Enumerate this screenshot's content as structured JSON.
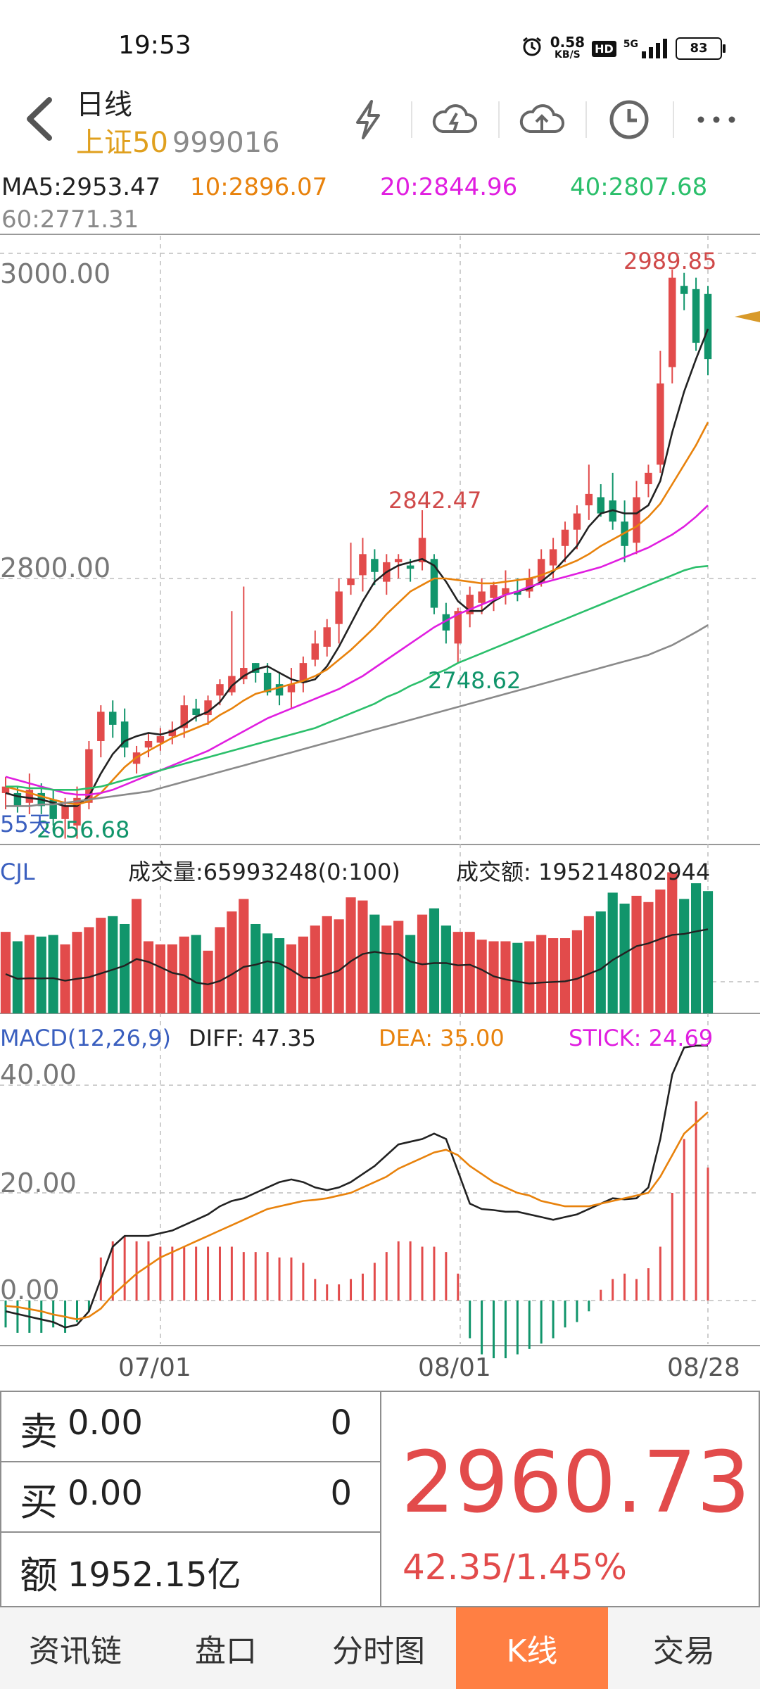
{
  "status_bar": {
    "time": "19:53",
    "net_speed": "0.58",
    "net_unit": "KB/S",
    "hd": "HD",
    "signal": "5G",
    "battery": "83"
  },
  "header": {
    "period": "日线",
    "index_name": "上证50",
    "index_code": "999016"
  },
  "ma_legend": {
    "ma5": "MA5:2953.47",
    "ma10": "10:2896.07",
    "ma20": "20:2844.96",
    "ma40": "40:2807.68",
    "ma60": "60:2771.31"
  },
  "price_chart": {
    "y_tick_top": "3000.00",
    "y_tick_mid": "2800.00",
    "high_label": "2989.85",
    "mid_high_label": "2842.47",
    "mid_low_label": "2748.62",
    "low_label": "2656.68",
    "period_label": "55天"
  },
  "volume_panel": {
    "title": "CJL",
    "volume": "成交量:65993248(0:100)",
    "amount": "成交额: 195214802944"
  },
  "macd_panel": {
    "title": "MACD(12,26,9)",
    "diff": "DIFF: 47.35",
    "dea": "DEA: 35.00",
    "stick": "STICK: 24.69",
    "y_tick_40": "40.00",
    "y_tick_20": "20.00",
    "y_tick_0": "0.00"
  },
  "dates": {
    "d1": "07/01",
    "d2": "08/01",
    "d3": "08/28"
  },
  "quote": {
    "sell_label": "卖",
    "sell_price": "0.00",
    "sell_vol": "0",
    "buy_label": "买",
    "buy_price": "0.00",
    "buy_vol": "0",
    "amount_label": "额",
    "amount_value": "1952.15亿",
    "last_price": "2960.73",
    "change": "42.35/1.45%"
  },
  "tabs": [
    "资讯链",
    "盘口",
    "分时图",
    "K线",
    "交易"
  ],
  "active_tab": "K线",
  "colors": {
    "up": "#e24b4b",
    "down": "#11956b",
    "accent": "#ff7f43",
    "ma10": "#e8820c",
    "ma20": "#e01ee0",
    "ma40": "#2bbf6b",
    "ma60": "#8a8a8a"
  },
  "chart_data": [
    {
      "type": "candlestick",
      "title": "",
      "ylabel": "",
      "y_ticks": [
        2800,
        3000
      ],
      "ylim": [
        2650,
        3010
      ],
      "x_ticks": [
        "07/01",
        "08/01",
        "08/28"
      ],
      "annotations": {
        "high": 2989.85,
        "peak_mid": 2842.47,
        "trough_mid": 2748.62,
        "low": 2656.68
      },
      "ohlc": [
        [
          2668,
          2678,
          2658,
          2672
        ],
        [
          2668,
          2672,
          2656,
          2660
        ],
        [
          2662,
          2680,
          2655,
          2670
        ],
        [
          2668,
          2674,
          2655,
          2660
        ],
        [
          2664,
          2670,
          2648,
          2652
        ],
        [
          2652,
          2665,
          2640,
          2660
        ],
        [
          2648,
          2672,
          2640,
          2665
        ],
        [
          2662,
          2700,
          2658,
          2695
        ],
        [
          2700,
          2722,
          2690,
          2718
        ],
        [
          2718,
          2725,
          2702,
          2710
        ],
        [
          2712,
          2720,
          2690,
          2696
        ],
        [
          2686,
          2697,
          2680,
          2693
        ],
        [
          2696,
          2705,
          2690,
          2700
        ],
        [
          2699,
          2708,
          2694,
          2703
        ],
        [
          2703,
          2712,
          2698,
          2707
        ],
        [
          2708,
          2728,
          2702,
          2722
        ],
        [
          2720,
          2726,
          2712,
          2716
        ],
        [
          2716,
          2728,
          2710,
          2725
        ],
        [
          2728,
          2738,
          2722,
          2735
        ],
        [
          2730,
          2780,
          2728,
          2740
        ],
        [
          2738,
          2795,
          2735,
          2745
        ],
        [
          2748,
          2748,
          2736,
          2742
        ],
        [
          2742,
          2748,
          2728,
          2730
        ],
        [
          2735,
          2742,
          2722,
          2728
        ],
        [
          2730,
          2745,
          2720,
          2735
        ],
        [
          2736,
          2752,
          2730,
          2748
        ],
        [
          2750,
          2768,
          2746,
          2760
        ],
        [
          2758,
          2775,
          2752,
          2770
        ],
        [
          2772,
          2800,
          2760,
          2792
        ],
        [
          2796,
          2822,
          2790,
          2800
        ],
        [
          2802,
          2825,
          2792,
          2815
        ],
        [
          2812,
          2818,
          2796,
          2804
        ],
        [
          2798,
          2815,
          2790,
          2810
        ],
        [
          2810,
          2815,
          2800,
          2812
        ],
        [
          2808,
          2812,
          2798,
          2806
        ],
        [
          2810,
          2842,
          2805,
          2825
        ],
        [
          2812,
          2815,
          2778,
          2782
        ],
        [
          2778,
          2785,
          2760,
          2768
        ],
        [
          2760,
          2782,
          2748,
          2780
        ],
        [
          2778,
          2795,
          2770,
          2790
        ],
        [
          2785,
          2800,
          2778,
          2792
        ],
        [
          2788,
          2798,
          2780,
          2796
        ],
        [
          2790,
          2805,
          2784,
          2794
        ],
        [
          2792,
          2800,
          2786,
          2790
        ],
        [
          2792,
          2806,
          2788,
          2800
        ],
        [
          2798,
          2818,
          2795,
          2812
        ],
        [
          2808,
          2825,
          2800,
          2818
        ],
        [
          2820,
          2835,
          2810,
          2830
        ],
        [
          2830,
          2845,
          2818,
          2840
        ],
        [
          2845,
          2870,
          2836,
          2852
        ],
        [
          2850,
          2858,
          2838,
          2840
        ],
        [
          2848,
          2865,
          2830,
          2835
        ],
        [
          2835,
          2848,
          2810,
          2820
        ],
        [
          2822,
          2860,
          2815,
          2850
        ],
        [
          2858,
          2870,
          2850,
          2865
        ],
        [
          2870,
          2940,
          2865,
          2920
        ],
        [
          2930,
          2990,
          2920,
          2985
        ],
        [
          2980,
          2988,
          2965,
          2975
        ],
        [
          2978,
          2985,
          2940,
          2945
        ],
        [
          2975,
          2980,
          2925,
          2935
        ]
      ],
      "ma": {
        "MA5": [
          2668,
          2666,
          2665,
          2664,
          2662,
          2660,
          2660,
          2666,
          2680,
          2692,
          2700,
          2703,
          2705,
          2704,
          2706,
          2710,
          2715,
          2718,
          2724,
          2734,
          2740,
          2744,
          2746,
          2742,
          2738,
          2736,
          2738,
          2746,
          2758,
          2772,
          2786,
          2798,
          2804,
          2808,
          2810,
          2812,
          2808,
          2798,
          2786,
          2780,
          2780,
          2786,
          2790,
          2792,
          2794,
          2798,
          2804,
          2812,
          2820,
          2832,
          2840,
          2842,
          2840,
          2840,
          2845,
          2860,
          2890,
          2915,
          2935,
          2953.47
        ],
        "MA10": [
          2672,
          2670,
          2668,
          2666,
          2664,
          2662,
          2661,
          2663,
          2668,
          2676,
          2684,
          2690,
          2694,
          2698,
          2702,
          2705,
          2708,
          2711,
          2716,
          2720,
          2725,
          2729,
          2731,
          2733,
          2735,
          2737,
          2740,
          2744,
          2750,
          2756,
          2763,
          2770,
          2778,
          2785,
          2792,
          2796,
          2800,
          2800,
          2799,
          2798,
          2797,
          2797,
          2798,
          2799,
          2800,
          2802,
          2805,
          2808,
          2811,
          2815,
          2820,
          2824,
          2828,
          2832,
          2838,
          2846,
          2858,
          2870,
          2882,
          2896.07
        ],
        "MA20": [
          2678,
          2676,
          2674,
          2672,
          2670,
          2668,
          2667,
          2667,
          2668,
          2670,
          2673,
          2676,
          2679,
          2682,
          2685,
          2688,
          2691,
          2694,
          2698,
          2702,
          2706,
          2710,
          2714,
          2717,
          2720,
          2723,
          2726,
          2729,
          2732,
          2736,
          2740,
          2745,
          2750,
          2755,
          2760,
          2765,
          2770,
          2774,
          2778,
          2781,
          2784,
          2787,
          2790,
          2792,
          2795,
          2797,
          2799,
          2801,
          2803,
          2805,
          2807,
          2810,
          2813,
          2816,
          2819,
          2823,
          2827,
          2832,
          2838,
          2844.96
        ],
        "MA40": [
          2672,
          2672,
          2671,
          2671,
          2670,
          2670,
          2670,
          2671,
          2672,
          2674,
          2676,
          2678,
          2680,
          2682,
          2684,
          2686,
          2688,
          2690,
          2692,
          2694,
          2696,
          2698,
          2700,
          2702,
          2704,
          2706,
          2708,
          2711,
          2714,
          2717,
          2720,
          2723,
          2727,
          2730,
          2734,
          2737,
          2741,
          2744,
          2748,
          2751,
          2754,
          2757,
          2760,
          2763,
          2766,
          2769,
          2772,
          2775,
          2778,
          2781,
          2784,
          2787,
          2790,
          2793,
          2796,
          2799,
          2802,
          2805,
          2807,
          2807.68
        ],
        "MA60": [
          2660,
          2660,
          2660,
          2661,
          2661,
          2662,
          2663,
          2664,
          2665,
          2666,
          2667,
          2668,
          2669,
          2671,
          2673,
          2675,
          2677,
          2679,
          2681,
          2683,
          2685,
          2687,
          2689,
          2691,
          2693,
          2695,
          2697,
          2699,
          2701,
          2703,
          2705,
          2707,
          2709,
          2711,
          2713,
          2715,
          2717,
          2719,
          2721,
          2723,
          2725,
          2727,
          2729,
          2731,
          2733,
          2735,
          2737,
          2739,
          2741,
          2743,
          2745,
          2747,
          2749,
          2751,
          2753,
          2756,
          2759,
          2763,
          2767,
          2771.31
        ]
      }
    },
    {
      "type": "bar",
      "title": "CJL",
      "series": [
        {
          "name": "成交量",
          "values": [
            52,
            46,
            50,
            49,
            50,
            44,
            52,
            55,
            61,
            62,
            57,
            73,
            46,
            44,
            44,
            49,
            50,
            40,
            55,
            65,
            73,
            57,
            51,
            48,
            44,
            49,
            56,
            62,
            60,
            74,
            72,
            63,
            56,
            59,
            50,
            63,
            67,
            56,
            52,
            52,
            47,
            46,
            46,
            45,
            46,
            50,
            48,
            48,
            53,
            62,
            65,
            77,
            70,
            75,
            71,
            79,
            90,
            73,
            83,
            78
          ]
        }
      ]
    },
    {
      "type": "bar",
      "title": "MACD(12,26,9)",
      "ylabel": "",
      "y_ticks": [
        0,
        20,
        40
      ],
      "series": [
        {
          "name": "DIFF",
          "values": [
            -2,
            -2.5,
            -3,
            -3.5,
            -4,
            -5,
            -4.5,
            -2,
            4,
            10,
            12,
            12,
            12,
            12.5,
            13,
            14,
            15,
            16,
            17.5,
            18.5,
            19,
            20,
            21,
            22,
            22.5,
            22,
            21,
            20.5,
            21,
            22,
            23.5,
            25,
            27,
            29,
            29.5,
            30,
            31,
            30,
            24,
            18,
            17,
            16.8,
            16.5,
            16.5,
            16,
            15.5,
            15,
            15.5,
            16,
            17,
            18,
            19,
            18.8,
            19,
            21,
            30,
            42,
            47,
            47.35,
            47.35
          ]
        },
        {
          "name": "DEA",
          "values": [
            -1,
            -1.2,
            -1.6,
            -2,
            -2.6,
            -3,
            -3.5,
            -3,
            -1.5,
            1,
            3,
            5,
            6.5,
            8,
            9,
            10,
            11,
            12,
            13,
            14,
            15,
            16,
            17,
            17.5,
            18,
            18.5,
            18.7,
            19,
            19.5,
            20,
            21,
            22,
            23,
            24.5,
            25.5,
            26.5,
            27.5,
            28,
            27,
            25,
            23.5,
            22,
            21,
            20,
            19.5,
            18.5,
            18,
            17.5,
            17.5,
            17.5,
            18,
            18.5,
            19,
            19.5,
            20,
            23,
            27,
            31,
            33,
            35
          ]
        },
        {
          "name": "STICK",
          "values": [
            -5,
            -6,
            -6,
            -6,
            -5,
            -6,
            -4,
            -2,
            8,
            11,
            12,
            11,
            11,
            10,
            10,
            10,
            10,
            10,
            10,
            10,
            9,
            9,
            9,
            8,
            8,
            7,
            4,
            3,
            3,
            4,
            5,
            7,
            9,
            11,
            11,
            10,
            10,
            9,
            5,
            -7,
            -10,
            -11,
            -11,
            -10,
            -9,
            -8,
            -7,
            -5,
            -4,
            -2,
            2,
            4,
            5,
            4,
            6,
            10,
            20,
            30,
            37,
            24.69
          ]
        }
      ]
    }
  ]
}
